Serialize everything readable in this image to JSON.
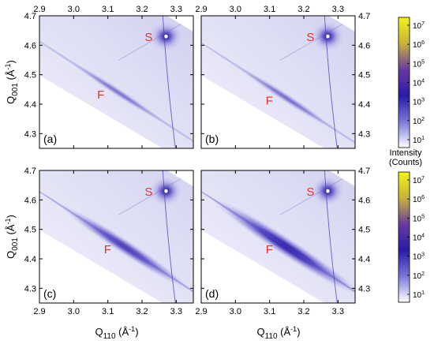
{
  "chart_data": {
    "type": "heatmap",
    "title": "",
    "xlabel": {
      "base": "Q",
      "sub": "110",
      "unit": " (Å",
      "sup": "-1",
      "close": ")"
    },
    "ylabel": {
      "base": "Q",
      "sub": "001",
      "unit": " (Å",
      "sup": "-1",
      "close": ")"
    },
    "x_ticks": [
      "2.9",
      "3.0",
      "3.1",
      "3.2",
      "3.3"
    ],
    "y_ticks": [
      "4.3",
      "4.4",
      "4.5",
      "4.6",
      "4.7"
    ],
    "xlim": [
      2.9,
      3.35
    ],
    "ylim": [
      4.25,
      4.7
    ],
    "colorbar": {
      "title_lines": [
        "Intensity",
        "(Counts)"
      ],
      "tick_labels": [
        {
          "base": "10",
          "exp": "7"
        },
        {
          "base": "10",
          "exp": "6"
        },
        {
          "base": "10",
          "exp": "5"
        },
        {
          "base": "10",
          "exp": "4"
        },
        {
          "base": "10",
          "exp": "3"
        },
        {
          "base": "10",
          "exp": "2"
        },
        {
          "base": "10",
          "exp": "1"
        }
      ],
      "gradient": [
        "#ffffff",
        "#7878d8",
        "#2a1aa8",
        "#6a3aa0",
        "#c8b43a",
        "#f2f21a"
      ]
    },
    "panels": [
      {
        "label": "(a)",
        "substrate_peak": {
          "label": "S",
          "x": 3.27,
          "y": 4.63
        },
        "film_peak": {
          "label": "F",
          "x": 3.13,
          "y": 4.44
        },
        "film_strength": 0.28,
        "background": 0.45
      },
      {
        "label": "(b)",
        "substrate_peak": {
          "label": "S",
          "x": 3.27,
          "y": 4.63
        },
        "film_peak": {
          "label": "F",
          "x": 3.15,
          "y": 4.42
        },
        "film_strength": 0.33,
        "background": 0.4
      },
      {
        "label": "(c)",
        "substrate_peak": {
          "label": "S",
          "x": 3.27,
          "y": 4.63
        },
        "film_peak": {
          "label": "F",
          "x": 3.15,
          "y": 4.44
        },
        "film_strength": 0.75,
        "background": 0.35
      },
      {
        "label": "(d)",
        "substrate_peak": {
          "label": "S",
          "x": 3.27,
          "y": 4.63
        },
        "film_peak": {
          "label": "F",
          "x": 3.15,
          "y": 4.44
        },
        "film_strength": 1.0,
        "background": 0.38
      }
    ]
  }
}
